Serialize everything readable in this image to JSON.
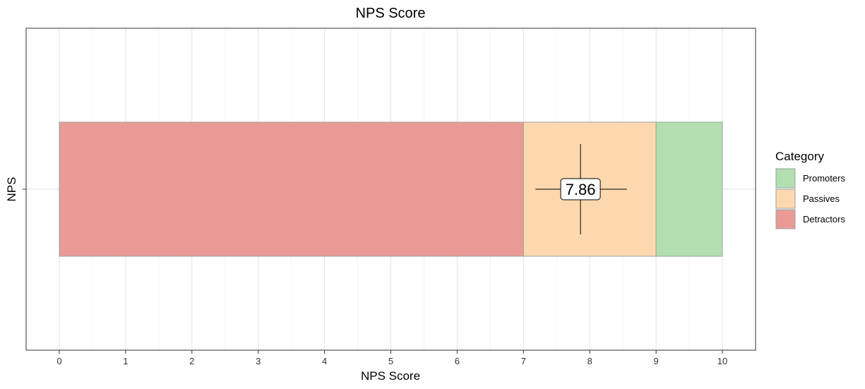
{
  "chart_data": {
    "type": "bar",
    "title": "NPS Score",
    "xlabel": "NPS Score",
    "ylabel": "NPS",
    "xlim": [
      -0.5,
      10.5
    ],
    "xticks": [
      0,
      1,
      2,
      3,
      4,
      5,
      6,
      7,
      8,
      9,
      10
    ],
    "xtick_labels": [
      "0",
      "1",
      "2",
      "3",
      "4",
      "5",
      "6",
      "7",
      "8",
      "9",
      "10"
    ],
    "categories": [
      "NPS"
    ],
    "grid": true,
    "legend": {
      "title": "Category",
      "placement": "right",
      "entries": [
        {
          "label": "Promoters",
          "color": "#b3dfb0"
        },
        {
          "label": "Passives",
          "color": "#fdd8ae"
        },
        {
          "label": "Detractors",
          "color": "#ea9a95"
        }
      ]
    },
    "segments": [
      {
        "category": "Detractors",
        "start": 0,
        "end": 7,
        "color": "#ea9a95"
      },
      {
        "category": "Passives",
        "start": 7,
        "end": 9,
        "color": "#fdd8ae"
      },
      {
        "category": "Promoters",
        "start": 9,
        "end": 10,
        "color": "#b3dfb0"
      }
    ],
    "score": {
      "value": 7.86,
      "label": "7.86",
      "x_error": [
        7.18,
        8.56
      ]
    }
  }
}
